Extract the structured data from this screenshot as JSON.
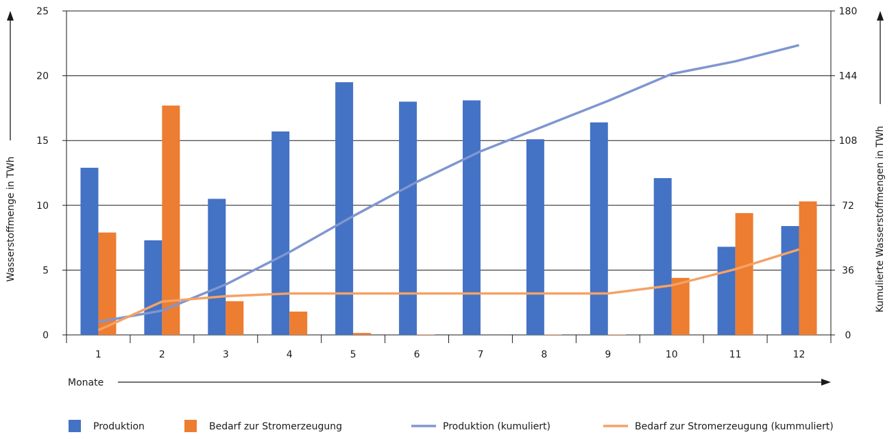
{
  "chart_data": {
    "type": "bar",
    "categories": [
      "1",
      "2",
      "3",
      "4",
      "5",
      "6",
      "7",
      "8",
      "9",
      "10",
      "11",
      "12"
    ],
    "series": [
      {
        "name": "Produktion",
        "kind": "bar",
        "axis": "left",
        "color": "#4472c4",
        "values": [
          12.9,
          7.3,
          10.5,
          15.7,
          19.5,
          18.0,
          18.1,
          15.1,
          16.4,
          12.1,
          6.8,
          8.4
        ]
      },
      {
        "name": "Bedarf zur Stromerzeugung",
        "kind": "bar",
        "axis": "left",
        "color": "#ed7d31",
        "values": [
          7.9,
          17.7,
          2.6,
          1.8,
          0.15,
          0.03,
          0.0,
          0.03,
          0.03,
          4.4,
          9.4,
          10.3
        ]
      },
      {
        "name": "Produktion (kumuliert)",
        "kind": "line",
        "axis": "right",
        "color": "#7f96d0",
        "values": [
          7.2,
          13.5,
          28.0,
          46.0,
          66.0,
          85.0,
          102.0,
          116.0,
          130.0,
          145.0,
          152.0,
          161.0
        ]
      },
      {
        "name": "Bedarf zur Stromerzeugung (kummuliert)",
        "kind": "line",
        "axis": "right",
        "color": "#f4a266",
        "values": [
          2.6,
          18.5,
          21.5,
          23.0,
          23.0,
          23.0,
          23.0,
          23.0,
          23.0,
          27.5,
          36.5,
          47.5
        ]
      }
    ],
    "y_left": {
      "label": "Wasserstoffmenge in TWh",
      "ticks": [
        "0",
        "5",
        "10",
        "15",
        "20",
        "25"
      ],
      "range": [
        0,
        25
      ]
    },
    "y_right": {
      "label": "Kumulierte Wasserstoffmengen in TWh",
      "ticks": [
        "0",
        "36",
        "72",
        "108",
        "144",
        "180"
      ],
      "range": [
        0,
        180
      ]
    },
    "xlabel": "Monate",
    "grid": true,
    "legend_position": "bottom"
  },
  "legend": {
    "items": [
      {
        "label": "Produktion",
        "shape": "square",
        "color": "#4472c4"
      },
      {
        "label": "Bedarf zur Stromerzeugung",
        "shape": "square",
        "color": "#ed7d31"
      },
      {
        "label": "Produktion (kumuliert)",
        "shape": "line",
        "color": "#7f96d0"
      },
      {
        "label": "Bedarf zur Stromerzeugung (kummuliert)",
        "shape": "line",
        "color": "#f4a266"
      }
    ]
  }
}
